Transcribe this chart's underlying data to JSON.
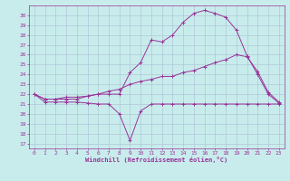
{
  "xlabel": "Windchill (Refroidissement éolien,°C)",
  "background_color": "#c8ecec",
  "grid_color": "#b0c8d8",
  "line_color": "#993399",
  "xlim": [
    -0.5,
    23.5
  ],
  "ylim": [
    16.5,
    31
  ],
  "yticks": [
    17,
    18,
    19,
    20,
    21,
    22,
    23,
    24,
    25,
    26,
    27,
    28,
    29,
    30
  ],
  "xticks": [
    0,
    1,
    2,
    3,
    4,
    5,
    6,
    7,
    8,
    9,
    10,
    11,
    12,
    13,
    14,
    15,
    16,
    17,
    18,
    19,
    20,
    21,
    22,
    23
  ],
  "curve1_x": [
    0,
    1,
    2,
    3,
    4,
    5,
    6,
    7,
    8,
    9,
    10,
    11,
    12,
    13,
    14,
    15,
    16,
    17,
    18,
    19,
    20,
    21,
    22,
    23
  ],
  "curve1_y": [
    22.0,
    21.2,
    21.2,
    21.2,
    21.2,
    21.1,
    21.0,
    21.0,
    20.0,
    17.3,
    20.3,
    21.0,
    21.0,
    21.0,
    21.0,
    21.0,
    21.0,
    21.0,
    21.0,
    21.0,
    21.0,
    21.0,
    21.0,
    21.0
  ],
  "curve2_x": [
    0,
    1,
    2,
    3,
    4,
    5,
    6,
    7,
    8,
    9,
    10,
    11,
    12,
    13,
    14,
    15,
    16,
    17,
    18,
    19,
    20,
    21,
    22,
    23
  ],
  "curve2_y": [
    22.0,
    21.5,
    21.5,
    21.7,
    21.7,
    21.8,
    22.0,
    22.3,
    22.5,
    23.0,
    23.3,
    23.5,
    23.8,
    23.8,
    24.2,
    24.4,
    24.8,
    25.2,
    25.5,
    26.0,
    25.8,
    24.3,
    22.2,
    21.2
  ],
  "curve3_x": [
    0,
    1,
    2,
    3,
    4,
    5,
    6,
    7,
    8,
    9,
    10,
    11,
    12,
    13,
    14,
    15,
    16,
    17,
    18,
    19,
    20,
    21,
    22,
    23
  ],
  "curve3_y": [
    22.0,
    21.5,
    21.5,
    21.5,
    21.5,
    21.8,
    22.0,
    22.0,
    22.0,
    24.2,
    25.2,
    27.5,
    27.3,
    28.0,
    29.3,
    30.2,
    30.5,
    30.2,
    29.8,
    28.5,
    25.9,
    24.0,
    22.0,
    21.1
  ]
}
